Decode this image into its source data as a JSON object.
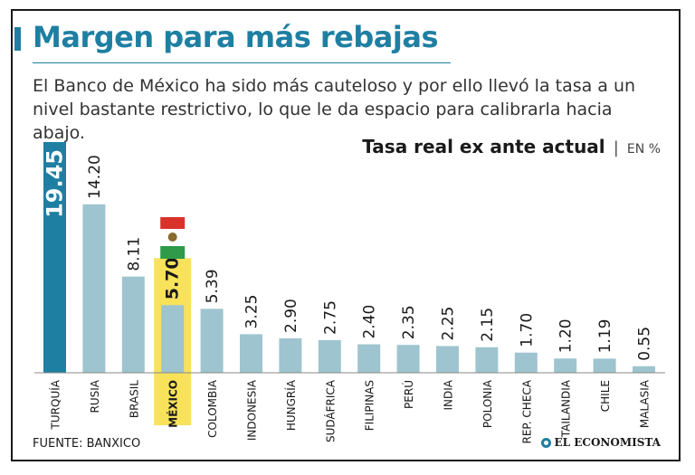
{
  "header": {
    "title": "Margen para más rebajas",
    "subtitle": "El Banco de México ha sido más cauteloso y por ello llevó la tasa a un nivel bastante restrictivo, lo que le da espacio para calibrarla hacia abajo.",
    "chart_title": "Tasa real ex ante actual",
    "chart_title_sep": "|",
    "chart_unit": "EN %"
  },
  "footer": {
    "source": "FUENTE: BANXICO",
    "logo": "EL ECONOMISTA"
  },
  "colors": {
    "brand": "#1e7fa2",
    "bar": "#9ec4cf",
    "highlight_bar": "#9ec4cf",
    "highlight_bg": "#f7e25a",
    "label": "#1a1a1a",
    "flag_green": "#2e9a4a",
    "flag_red": "#d9322b"
  },
  "chart_data": {
    "type": "bar",
    "categories": [
      "TURQUÍA",
      "RUSIA",
      "BRASIL",
      "MÉXICO",
      "COLOMBIA",
      "INDONESIA",
      "HUNGRÍA",
      "SUDÁFRICA",
      "FILIPINAS",
      "PERÚ",
      "INDIA",
      "POLONIA",
      "REP. CHECA",
      "TAILANDIA",
      "CHILE",
      "MALASIA"
    ],
    "values": [
      19.45,
      14.2,
      8.11,
      5.7,
      5.39,
      3.25,
      2.9,
      2.75,
      2.4,
      2.35,
      2.25,
      2.15,
      1.7,
      1.2,
      1.19,
      0.55
    ],
    "value_labels": [
      "19.45",
      "14.20",
      "8.11",
      "5.70",
      "5.39",
      "3.25",
      "2.90",
      "2.75",
      "2.40",
      "2.35",
      "2.25",
      "2.15",
      "1.70",
      "1.20",
      "1.19",
      "0.55"
    ],
    "highlight_index": 3,
    "max_index": 0,
    "ylim": [
      0,
      19.45
    ],
    "title": "Tasa real ex ante actual",
    "ylabel": "EN %",
    "xlabel": "",
    "grid": false,
    "legend": "none"
  }
}
